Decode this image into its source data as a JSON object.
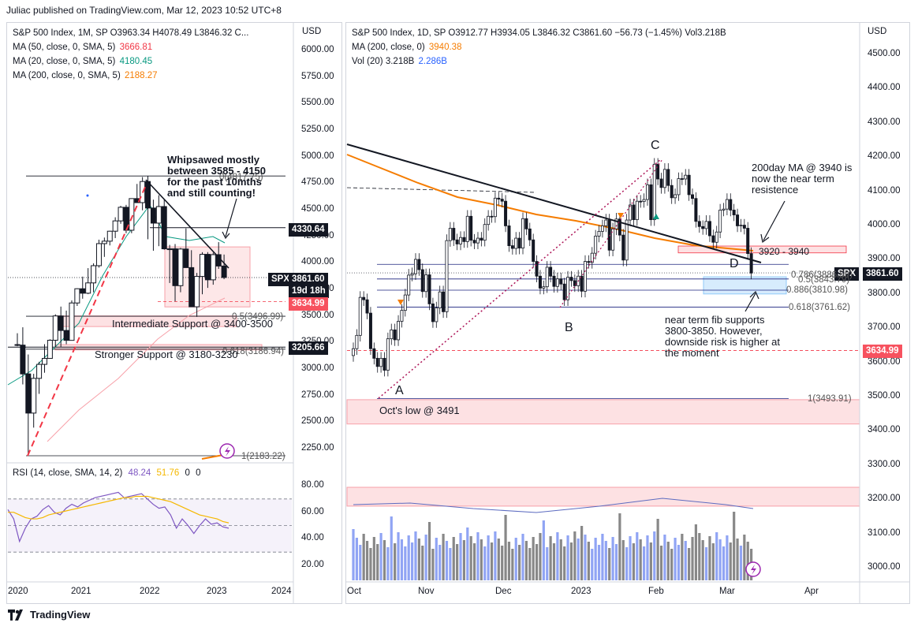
{
  "header": {
    "text": "Juliac published on TradingView.com, Mar 12, 2023 10:52 UTC+8"
  },
  "left_pane": {
    "title": "S&P 500 Index, 1M, SP  O3963.34  H4078.49  L3846.32  C...",
    "ma_items": [
      {
        "label": "MA (50, close, 0, SMA, 5)",
        "value": "3666.81",
        "color": "#f23645"
      },
      {
        "label": "MA (20, close, 0, SMA, 5)",
        "value": "4180.45",
        "color": "#089981"
      },
      {
        "label": "MA (200, close, 0, SMA, 5)",
        "value": "2188.27",
        "color": "#f57c00"
      }
    ],
    "axis_unit": "USD",
    "price_ticks": [
      "6000.00",
      "5750.00",
      "5500.00",
      "5250.00",
      "5000.00",
      "4750.00",
      "4500.00",
      "4250.00",
      "4000.00",
      "3750.00",
      "3500.00",
      "3250.00",
      "3000.00",
      "2750.00",
      "2500.00",
      "2250.00"
    ],
    "time_ticks": [
      "2020",
      "2021",
      "2022",
      "2023",
      "2024"
    ],
    "tags": [
      {
        "text": "4330.64",
        "bg": "#131722",
        "fg": "#ffffff"
      },
      {
        "text": "SPX",
        "bg": "#131722",
        "fg": "#ffffff"
      },
      {
        "text": "3861.60",
        "bg": "#131722",
        "fg": "#ffffff"
      },
      {
        "text": "19d 18h",
        "bg": "#131722",
        "fg": "#ffffff"
      },
      {
        "text": "3634.99",
        "bg": "#f7525f",
        "fg": "#ffffff"
      },
      {
        "text": "3205.66",
        "bg": "#131722",
        "fg": "#ffffff"
      }
    ],
    "fib_labels": [
      "0(4817.75)",
      "0.5(3496.99)",
      "0.618(3186.94)",
      "1(2183.22)"
    ],
    "annotations": {
      "whipsaw": [
        "Whipsawed mostly",
        "between 3585 - 4150",
        "for the past 10mths",
        "and still counting!"
      ],
      "intermediate": "Intermediate Support @ 3400-3500",
      "stronger": "Stronger Support @ 3180-3230"
    },
    "rsi": {
      "title": "RSI (14, close, SMA, 14, 2)",
      "v1": "48.24",
      "v2": "51.76",
      "v3": "0",
      "v4": "0",
      "ticks": [
        "80.00",
        "60.00",
        "40.00",
        "20.00"
      ]
    }
  },
  "right_pane": {
    "title": "S&P 500 Index, 1D, SP  O3912.77  H3934.05  L3846.32  C3861.60  −56.73 (−1.45%)  Vol3.218B",
    "ma_label": "MA (200, close, 0)",
    "ma_value": "3940.38",
    "vol_label": "Vol (20)  3.218B",
    "vol_value": "2.286B",
    "axis_unit": "USD",
    "price_ticks": [
      "4500.00",
      "4400.00",
      "4300.00",
      "4200.00",
      "4100.00",
      "4000.00",
      "3900.00",
      "3800.00",
      "3700.00",
      "3600.00",
      "3500.00",
      "3400.00",
      "3300.00",
      "3200.00",
      "3100.00",
      "3000.00"
    ],
    "time_ticks": [
      "Oct",
      "Nov",
      "Dec",
      "2023",
      "Feb",
      "Mar",
      "Apr"
    ],
    "tags": [
      {
        "text": "SPX",
        "bg": "#131722",
        "fg": "#ffffff"
      },
      {
        "text": "3861.60",
        "bg": "#131722",
        "fg": "#ffffff"
      },
      {
        "text": "3634.99",
        "bg": "#f7525f",
        "fg": "#ffffff"
      }
    ],
    "fib_labels": [
      "0.786(3886.59)",
      "0.5(3843.79)",
      "0.886(3810.98)",
      "0.618(3761.62)",
      "1(3493.91)"
    ],
    "wave_labels": [
      "A",
      "B",
      "C",
      "D"
    ],
    "annotations": {
      "ma200": [
        "200day MA @ 3940 is",
        "now the near term",
        "resistence"
      ],
      "zone": "3920 - 3940",
      "fib": [
        "near term fib supports",
        "3800-3850. However,",
        "downside risk is higher at",
        "the moment"
      ],
      "octlow": "Oct's low @ 3491"
    }
  },
  "footer": {
    "brand": "TradingView"
  },
  "chart_data": [
    {
      "type": "candlestick",
      "title": "S&P 500 Index, 1M",
      "ylim": [
        2100,
        6100
      ],
      "x_range": [
        "2020",
        "2024"
      ],
      "series": [
        {
          "name": "MA (50, close, 0, SMA, 5)",
          "last": 3666.81
        },
        {
          "name": "MA (20, close, 0, SMA, 5)",
          "last": 4180.45
        },
        {
          "name": "MA (200, close, 0, SMA, 5)",
          "last": 2188.27
        }
      ],
      "candles": [
        [
          3230,
          3337,
          3214,
          3225
        ],
        [
          3225,
          3393,
          2855,
          2954
        ],
        [
          2954,
          3137,
          2192,
          2585
        ],
        [
          2585,
          2955,
          2448,
          2912
        ],
        [
          2912,
          3068,
          2766,
          3044
        ],
        [
          3044,
          3234,
          2965,
          3100
        ],
        [
          3100,
          3280,
          3101,
          3271
        ],
        [
          3271,
          3515,
          3205,
          3500
        ],
        [
          3500,
          3588,
          3209,
          3363
        ],
        [
          3363,
          3550,
          3234,
          3270
        ],
        [
          3270,
          3646,
          3279,
          3622
        ],
        [
          3622,
          3760,
          3594,
          3756
        ],
        [
          3756,
          3870,
          3662,
          3714
        ],
        [
          3714,
          3950,
          3705,
          3811
        ],
        [
          3811,
          3995,
          3723,
          3973
        ],
        [
          3973,
          4218,
          3955,
          4181
        ],
        [
          4181,
          4238,
          4056,
          4204
        ],
        [
          4204,
          4302,
          4164,
          4298
        ],
        [
          4298,
          4429,
          4233,
          4395
        ],
        [
          4395,
          4537,
          4368,
          4523
        ],
        [
          4523,
          4546,
          4279,
          4307
        ],
        [
          4307,
          4608,
          4279,
          4605
        ],
        [
          4605,
          4743,
          4592,
          4567
        ],
        [
          4567,
          4808,
          4495,
          4766
        ],
        [
          4766,
          4818,
          4222,
          4516
        ],
        [
          4516,
          4595,
          4114,
          4374
        ],
        [
          4374,
          4637,
          4157,
          4530
        ],
        [
          4530,
          4593,
          4124,
          4132
        ],
        [
          4132,
          4169,
          3810,
          4132
        ],
        [
          4132,
          4177,
          3637,
          3785
        ],
        [
          3785,
          4140,
          3723,
          4130
        ],
        [
          4130,
          4325,
          3954,
          3955
        ],
        [
          3955,
          4119,
          3584,
          3586
        ],
        [
          3586,
          3905,
          3491,
          3872
        ],
        [
          3872,
          4100,
          3704,
          4080
        ],
        [
          4080,
          4101,
          3764,
          3840
        ],
        [
          3840,
          4095,
          3794,
          4077
        ],
        [
          4077,
          4195,
          3943,
          3970
        ],
        [
          3970,
          4078,
          3846,
          3862
        ]
      ],
      "fib_levels": [
        {
          "ratio": 0,
          "price": 4817.75
        },
        {
          "ratio": 0.5,
          "price": 3496.99
        },
        {
          "ratio": 0.618,
          "price": 3186.94
        },
        {
          "ratio": 1,
          "price": 2183.22
        }
      ],
      "levels": [
        4330.64,
        3861.6,
        3634.99,
        3205.66
      ],
      "zones": [
        [
          3400,
          3500
        ],
        [
          3180,
          3230
        ],
        [
          3585,
          4150
        ]
      ]
    },
    {
      "type": "line",
      "title": "RSI (14, close, SMA, 14, 2)",
      "ylim": [
        20,
        85
      ],
      "bands": [
        30,
        50,
        70
      ],
      "series": [
        {
          "name": "RSI",
          "values": [
            62,
            55,
            38,
            48,
            55,
            57,
            62,
            65,
            60,
            58,
            63,
            66,
            64,
            67,
            69,
            71,
            72,
            73,
            74,
            75,
            71,
            72,
            73,
            74,
            70,
            66,
            63,
            64,
            58,
            48,
            55,
            50,
            44,
            50,
            55,
            51,
            52,
            49,
            48
          ]
        },
        {
          "name": "SMA",
          "values": [
            60,
            60,
            58,
            56,
            55,
            55,
            56,
            58,
            59,
            60,
            61,
            62,
            63,
            64,
            65,
            66,
            67,
            68,
            69,
            70,
            71,
            71,
            72,
            72,
            72,
            71,
            70,
            69,
            68,
            66,
            64,
            62,
            60,
            58,
            57,
            56,
            55,
            53,
            52
          ]
        }
      ]
    },
    {
      "type": "candlestick",
      "title": "S&P 500 Index, 1D",
      "ylim": [
        2980,
        4560
      ],
      "x_range": [
        "Oct 2022",
        "Apr 2023"
      ],
      "candles_close": [
        3640,
        3679,
        3790,
        3783,
        3744,
        3640,
        3612,
        3588,
        3612,
        3577,
        3669,
        3695,
        3666,
        3720,
        3752,
        3797,
        3855,
        3859,
        3901,
        3871,
        3807,
        3856,
        3771,
        3719,
        3759,
        3806,
        3748,
        3956,
        3992,
        3958,
        3946,
        3965,
        3953,
        4027,
        3957,
        3949,
        3963,
        3957,
        4003,
        4027,
        4026,
        4080,
        4077,
        4071,
        3999,
        3941,
        3933,
        3963,
        3934,
        4020,
        3990,
        3958,
        3895,
        3852,
        3817,
        3821,
        3878,
        3852,
        3822,
        3844,
        3829,
        3783,
        3849,
        3839,
        3824,
        3852,
        3808,
        3895,
        3892,
        3919,
        3969,
        3983,
        3999,
        4016,
        3928,
        3990,
        4019,
        3972,
        3899,
        4016,
        4060,
        4017,
        4071,
        4070,
        4076,
        4119,
        4017,
        4179,
        4136,
        4111,
        4164,
        4117,
        4081,
        4090,
        4137,
        4136,
        4147,
        4090,
        4079,
        4012,
        3997,
        3991,
        4012,
        3970,
        3951,
        3981,
        4045,
        4048,
        4076,
        4045,
        4031,
        3999,
        4001,
        3992,
        3918,
        3861
      ],
      "series": [
        {
          "name": "MA (200, close, 0)",
          "last": 3940.38
        },
        {
          "name": "Vol (20)",
          "last": 2.286
        }
      ],
      "fib_levels": [
        {
          "ratio": 0.786,
          "price": 3886.59
        },
        {
          "ratio": 0.5,
          "price": 3843.79
        },
        {
          "ratio": 0.886,
          "price": 3810.98
        },
        {
          "ratio": 0.618,
          "price": 3761.62
        },
        {
          "ratio": 1,
          "price": 3493.91
        }
      ],
      "levels": [
        3861.6,
        3634.99
      ],
      "zones": [
        [
          3920,
          3940
        ],
        [
          3800,
          3850
        ],
        [
          3420,
          3491
        ]
      ],
      "waves": {
        "A": 3491,
        "B": 3764,
        "C": 4195,
        "D": 3900
      }
    }
  ]
}
